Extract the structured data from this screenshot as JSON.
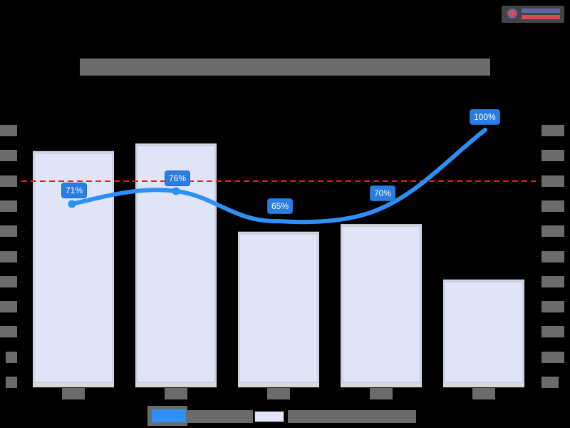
{
  "logo": {
    "text": "[redacted logo]"
  },
  "title": "[redacted chart title]",
  "chart_data": {
    "type": "bar",
    "title": "[redacted]",
    "categories": [
      "[cat1]",
      "[cat2]",
      "[cat3]",
      "[cat4]",
      "[cat5]"
    ],
    "series": [
      {
        "name": "[redacted line series]",
        "type": "line",
        "axis": "left",
        "values": [
          71,
          76,
          65,
          70,
          100
        ],
        "unit": "%",
        "color": "#2e8ff7"
      },
      {
        "name": "[redacted bar series]",
        "type": "bar",
        "axis": "right",
        "values_relative": [
          0.91,
          0.94,
          0.59,
          0.62,
          0.4
        ],
        "color": "#dfe4f7"
      }
    ],
    "data_labels": [
      "71%",
      "76%",
      "65%",
      "70%",
      "100%"
    ],
    "reference_line": {
      "style": "dashed",
      "color": "#e5201e",
      "relative_y": 0.82
    },
    "left_ticks": [
      "",
      "",
      "",
      "",
      "",
      "",
      "",
      "",
      "",
      "",
      ""
    ],
    "right_ticks": [
      "",
      "",
      "",
      "",
      "",
      "",
      "",
      "",
      "",
      "",
      ""
    ],
    "legend_position": "bottom",
    "grid": false
  }
}
